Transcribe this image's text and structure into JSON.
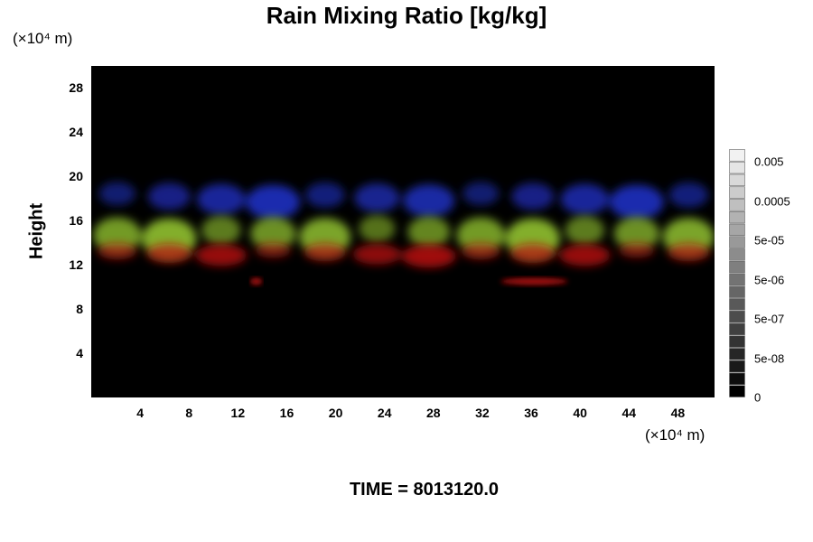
{
  "chart_data": {
    "type": "heatmap",
    "title": "Rain Mixing Ratio [kg/kg]",
    "ylabel": "Height",
    "xlabel": "",
    "x_unit": "(×10⁴ m)",
    "y_unit": "(×10⁴ m)",
    "xlim": [
      0,
      51
    ],
    "ylim": [
      0,
      30
    ],
    "x_ticks": [
      "4",
      "8",
      "12",
      "16",
      "20",
      "24",
      "28",
      "32",
      "36",
      "40",
      "44",
      "48"
    ],
    "y_ticks": [
      "4",
      "8",
      "12",
      "16",
      "20",
      "24",
      "28"
    ],
    "colorbar": {
      "levels": 20,
      "tick_labels": [
        "0.005",
        "0.0005",
        "5e-05",
        "5e-06",
        "5e-07",
        "5e-08",
        "0"
      ],
      "min_color": "#000000",
      "max_color": "#f2f2f2"
    },
    "features": [
      {
        "color": "#2233cc",
        "x_range": [
          0,
          51
        ],
        "y_range": [
          16.5,
          19.5
        ]
      },
      {
        "color": "#9acd32",
        "x_range": [
          0,
          51
        ],
        "y_range": [
          13,
          16.5
        ]
      },
      {
        "color": "#bb1111",
        "x_range": [
          0,
          51
        ],
        "y_range": [
          12,
          14
        ]
      },
      {
        "color": "#bb1111",
        "x_range": [
          33.5,
          39
        ],
        "y_range": [
          10,
          11
        ]
      },
      {
        "color": "#bb1111",
        "x_range": [
          13,
          14
        ],
        "y_range": [
          10,
          11
        ]
      }
    ],
    "annotation": "TIME = 8013120.0"
  }
}
